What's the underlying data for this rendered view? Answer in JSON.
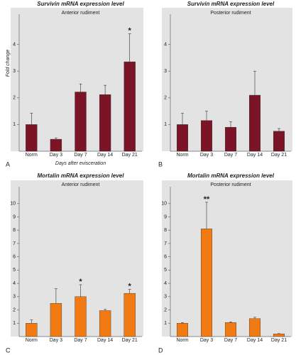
{
  "chart_data": [
    {
      "type": "bar",
      "panel_label": "A",
      "title": "Survivin mRNA expression level",
      "subtitle": "Anterior rudiment",
      "ylabel": "Fold change",
      "xlabel": "Days after evisceration",
      "categories": [
        "Norm",
        "Day 3",
        "Day 7",
        "Day 14",
        "Day 21"
      ],
      "values": [
        1.0,
        0.45,
        2.22,
        2.12,
        3.35
      ],
      "errors": [
        0.43,
        0.05,
        0.3,
        0.35,
        1.05
      ],
      "color": "#7a1426",
      "ylim": [
        0,
        5
      ],
      "yticks": [
        1,
        2,
        3,
        4
      ],
      "annotations": [
        {
          "category": "Day 21",
          "text": "*"
        }
      ]
    },
    {
      "type": "bar",
      "panel_label": "B",
      "title": "Survivin mRNA expression level",
      "subtitle": "Posterior rudiment",
      "categories": [
        "Norm",
        "Day 3",
        "Day 7",
        "Day 14",
        "Day 21"
      ],
      "values": [
        1.0,
        1.15,
        0.9,
        2.1,
        0.75
      ],
      "errors": [
        0.42,
        0.35,
        0.2,
        0.9,
        0.1
      ],
      "color": "#7a1426",
      "ylim": [
        0,
        5
      ],
      "yticks": [
        1,
        2,
        3,
        4
      ],
      "annotations": []
    },
    {
      "type": "bar",
      "panel_label": "C",
      "title": "Mortalin mRNA expression level",
      "subtitle": "Anterior rudiment",
      "categories": [
        "Norm",
        "Day 3",
        "Day 7",
        "Day 14",
        "Day 21"
      ],
      "values": [
        1.0,
        2.5,
        3.0,
        1.95,
        3.25
      ],
      "errors": [
        0.25,
        1.1,
        0.9,
        0.1,
        0.3
      ],
      "color": "#f27a12",
      "ylim": [
        0,
        11
      ],
      "yticks": [
        1,
        2,
        3,
        4,
        5,
        6,
        7,
        8,
        9,
        10
      ],
      "annotations": [
        {
          "category": "Day 7",
          "text": "*"
        },
        {
          "category": "Day 21",
          "text": "*"
        }
      ]
    },
    {
      "type": "bar",
      "panel_label": "D",
      "title": "Mortalin mRNA expression level",
      "subtitle": "Posterior rudiment",
      "categories": [
        "Norm",
        "Day 3",
        "Day 7",
        "Day 14",
        "Day 21"
      ],
      "values": [
        1.0,
        8.1,
        1.05,
        1.35,
        0.2
      ],
      "errors": [
        0.05,
        2.0,
        0.05,
        0.1,
        0.02
      ],
      "color": "#f27a12",
      "ylim": [
        0,
        11
      ],
      "yticks": [
        1,
        2,
        3,
        4,
        5,
        6,
        7,
        8,
        9,
        10
      ],
      "annotations": [
        {
          "category": "Day 3",
          "text": "**"
        }
      ]
    }
  ]
}
